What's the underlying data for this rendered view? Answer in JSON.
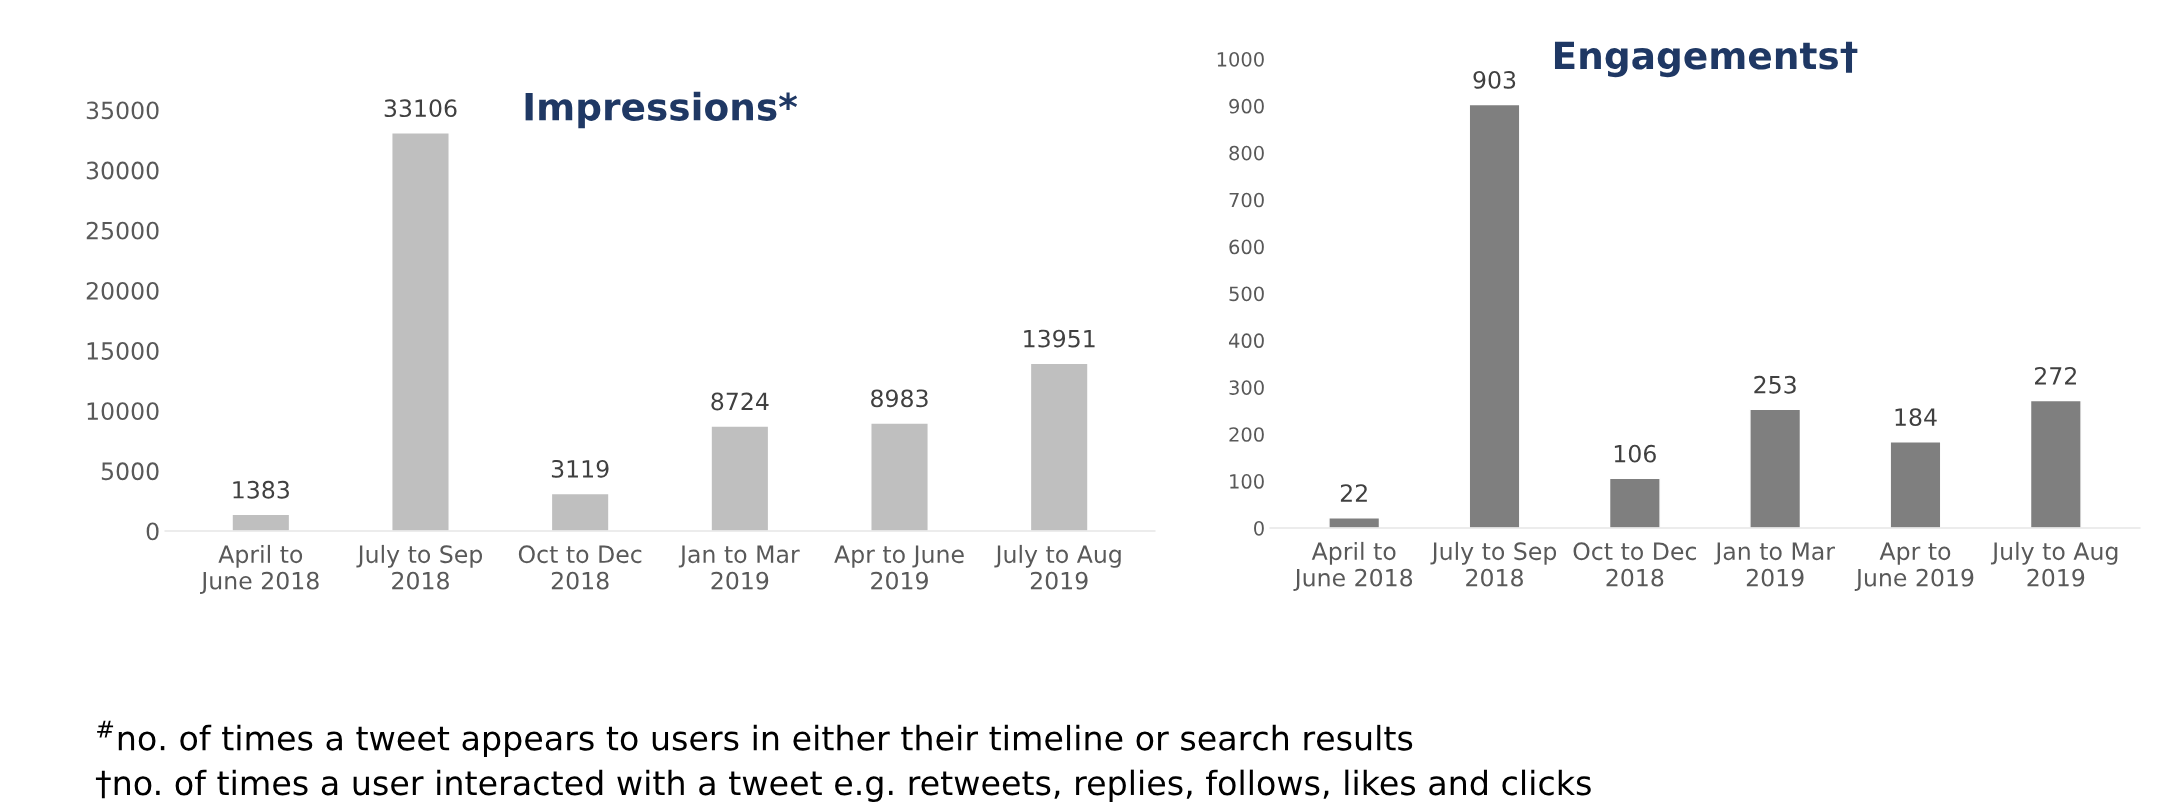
{
  "chart_data": [
    {
      "type": "bar",
      "title": "Impressions*",
      "categories": [
        "April to\nJune 2018",
        "July to Sep\n2018",
        "Oct to Dec\n2018",
        "Jan to Mar\n2019",
        "Apr to June\n2019",
        "July to Aug\n2019"
      ],
      "values": [
        1383,
        33106,
        3119,
        8724,
        8983,
        13951
      ],
      "color": "#bfbfbf",
      "data_labels": true,
      "ylim": [
        0,
        35000
      ],
      "yticks": [
        0,
        5000,
        10000,
        15000,
        20000,
        25000,
        30000,
        35000
      ],
      "grid": false,
      "annotations": [
        "$^{#}$no. of times a tweet appears to users in either their timeline or search results"
      ]
    },
    {
      "type": "bar",
      "title": "Engagements†",
      "categories": [
        "April to\nJune 2018",
        "July to Sep\n2018",
        "Oct to Dec\n2018",
        "Jan to Mar\n2019",
        "Apr to\nJune 2019",
        "July to Aug\n2019"
      ],
      "values": [
        22,
        903,
        106,
        253,
        184,
        272
      ],
      "color": "#7f7f7f",
      "data_labels": true,
      "ylim": [
        0,
        1000
      ],
      "yticks": [
        0,
        100,
        200,
        300,
        400,
        500,
        600,
        700,
        800,
        900,
        1000
      ],
      "grid": false,
      "annotations": [
        "†no. of times a user interacted with a tweet e.g. retweets, replies, follows, likes and clicks"
      ]
    }
  ]
}
